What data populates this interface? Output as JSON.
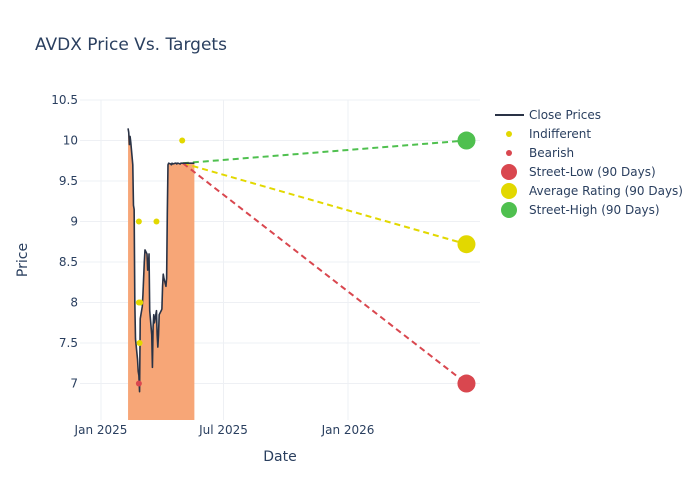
{
  "chart_data": {
    "type": "line",
    "title": "AVDX Price Vs. Targets",
    "xlabel": "Date",
    "ylabel": "Price",
    "ylim": [
      6.55,
      10.5
    ],
    "xlim": [
      "2024-12-01",
      "2026-07-15"
    ],
    "x_ticks": [
      {
        "date": "2025-01-01",
        "label": "Jan 2025"
      },
      {
        "date": "2025-07-01",
        "label": "Jul 2025"
      },
      {
        "date": "2026-01-01",
        "label": "Jan 2026"
      }
    ],
    "y_ticks": [
      {
        "value": 7,
        "label": "7"
      },
      {
        "value": 7.5,
        "label": "7.5"
      },
      {
        "value": 8,
        "label": "8"
      },
      {
        "value": 8.5,
        "label": "8.5"
      },
      {
        "value": 9,
        "label": "9"
      },
      {
        "value": 9.5,
        "label": "9.5"
      },
      {
        "value": 10,
        "label": "10"
      },
      {
        "value": 10.5,
        "label": "10.5"
      }
    ],
    "grid": true,
    "legend_position": "right",
    "colors": {
      "close": "#2a3346",
      "fill": "#f7a677",
      "indifferent": "#e2d800",
      "bearish": "#d9474f",
      "street_low": "#d9474f",
      "average": "#e2d800",
      "street_high": "#4fc04f",
      "grid": "#eef0f4",
      "text": "#2a3f5f"
    },
    "close_prices": {
      "name": "Close Prices",
      "x": [
        "2025-02-10",
        "2025-02-11",
        "2025-02-12",
        "2025-02-13",
        "2025-02-14",
        "2025-02-17",
        "2025-02-18",
        "2025-02-19",
        "2025-02-20",
        "2025-02-21",
        "2025-02-24",
        "2025-02-25",
        "2025-02-26",
        "2025-02-27",
        "2025-02-28",
        "2025-03-03",
        "2025-03-04",
        "2025-03-05",
        "2025-03-06",
        "2025-03-07",
        "2025-03-10",
        "2025-03-11",
        "2025-03-12",
        "2025-03-13",
        "2025-03-14",
        "2025-03-17",
        "2025-03-18",
        "2025-03-19",
        "2025-03-20",
        "2025-03-21",
        "2025-03-24",
        "2025-03-25",
        "2025-03-26",
        "2025-03-27",
        "2025-03-28",
        "2025-03-31",
        "2025-04-01",
        "2025-04-02",
        "2025-04-03",
        "2025-04-04",
        "2025-04-07",
        "2025-04-08",
        "2025-04-09",
        "2025-04-10",
        "2025-04-11",
        "2025-04-14",
        "2025-04-15",
        "2025-04-16",
        "2025-04-17",
        "2025-04-21",
        "2025-04-22",
        "2025-04-23",
        "2025-04-24",
        "2025-04-25",
        "2025-04-28",
        "2025-04-29",
        "2025-04-30",
        "2025-05-01",
        "2025-05-02",
        "2025-05-05",
        "2025-05-06",
        "2025-05-07",
        "2025-05-08",
        "2025-05-09",
        "2025-05-12",
        "2025-05-13",
        "2025-05-14",
        "2025-05-15",
        "2025-05-16",
        "2025-05-19"
      ],
      "values": [
        10.15,
        10.1,
        9.95,
        10.05,
        9.98,
        9.7,
        9.2,
        9.15,
        8.0,
        7.55,
        7.3,
        7.15,
        7.1,
        6.9,
        7.8,
        7.95,
        8.1,
        8.3,
        8.5,
        8.65,
        8.6,
        8.4,
        8.45,
        8.6,
        7.9,
        7.6,
        7.2,
        7.7,
        7.85,
        7.75,
        7.9,
        7.6,
        7.45,
        7.6,
        7.85,
        7.9,
        7.92,
        8.2,
        8.35,
        8.3,
        8.2,
        8.3,
        9.1,
        9.7,
        9.72,
        9.71,
        9.7,
        9.72,
        9.71,
        9.72,
        9.72,
        9.71,
        9.72,
        9.72,
        9.71,
        9.72,
        9.72,
        9.72,
        9.72,
        9.72,
        9.72,
        9.72,
        9.72,
        9.72,
        9.72,
        9.72,
        9.72,
        9.72,
        9.72,
        9.72
      ]
    },
    "indifferent": {
      "name": "Indifferent",
      "points": [
        {
          "x": "2025-02-26",
          "y": 9.0
        },
        {
          "x": "2025-02-26",
          "y": 8.0
        },
        {
          "x": "2025-02-27",
          "y": 7.5
        },
        {
          "x": "2025-02-28",
          "y": 8.0
        },
        {
          "x": "2025-03-24",
          "y": 9.0
        },
        {
          "x": "2025-05-01",
          "y": 10.0
        }
      ]
    },
    "bearish": {
      "name": "Bearish",
      "points": [
        {
          "x": "2025-02-26",
          "y": 7.0
        }
      ]
    },
    "targets": {
      "start": {
        "x": "2025-05-02",
        "y": 9.72
      },
      "end_x": "2026-06-25",
      "street_low": {
        "name": "Street-Low (90 Days)",
        "value": 7.0
      },
      "average": {
        "name": "Average Rating (90 Days)",
        "value": 8.72
      },
      "street_high": {
        "name": "Street-High (90 Days)",
        "value": 10.0
      }
    }
  }
}
